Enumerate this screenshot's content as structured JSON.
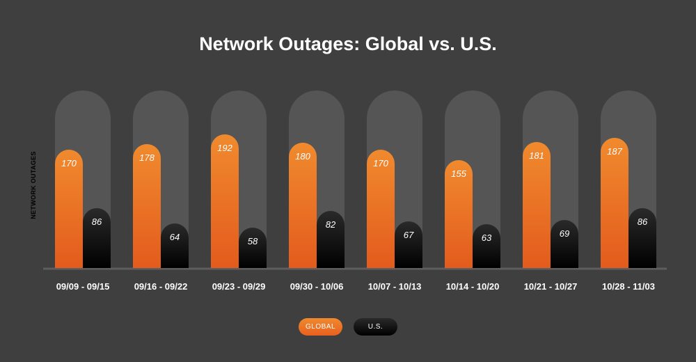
{
  "chart_data": {
    "type": "bar",
    "title": "Network Outages: Global vs. U.S.",
    "xlabel": "",
    "ylabel": "NETWORK OUTAGES",
    "ylim": [
      0,
      220
    ],
    "grid": false,
    "legend_position": "bottom-center",
    "categories": [
      "09/09 - 09/15",
      "09/16 - 09/22",
      "09/23 - 09/29",
      "09/30 - 10/06",
      "10/07 - 10/13",
      "10/14 - 10/20",
      "10/21 - 10/27",
      "10/28 - 11/03"
    ],
    "series": [
      {
        "name": "GLOBAL",
        "values": [
          170,
          178,
          192,
          180,
          170,
          155,
          181,
          187
        ]
      },
      {
        "name": "U.S.",
        "values": [
          86,
          64,
          58,
          82,
          67,
          63,
          69,
          86
        ]
      }
    ],
    "data_labels": {
      "GLOBAL": [
        "170",
        "178",
        "192",
        "180",
        "170",
        "155",
        "181",
        "187"
      ],
      "U.S.": [
        "86",
        "64",
        "58",
        "82",
        "67",
        "63",
        "69",
        "86"
      ]
    }
  },
  "legend": {
    "global_label": "GLOBAL",
    "us_label": "U.S."
  },
  "colors": {
    "background": "#3f3f3f",
    "track": "#555555",
    "baseline": "#5e5e5e",
    "global_top": "#f08a2e",
    "global_bottom": "#e35b1d",
    "us_top": "#2a2a2a",
    "us_bottom": "#000000",
    "text": "#ffffff",
    "axis_text": "#000000"
  }
}
